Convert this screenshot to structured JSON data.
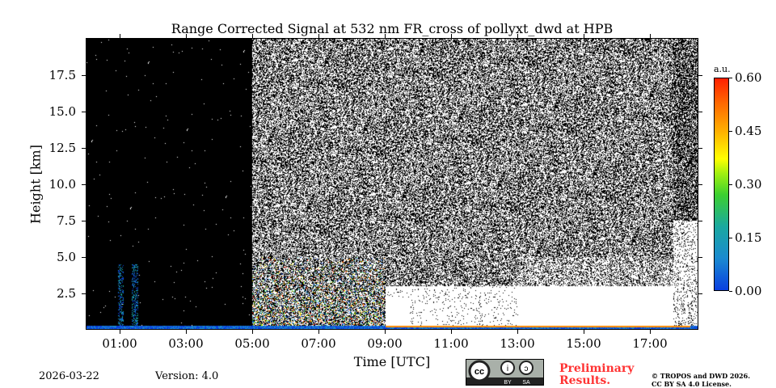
{
  "chart_data": {
    "type": "heatmap",
    "title": "Range Corrected Signal at 532 nm FR_cross of pollyxt_dwd at HPB",
    "xlabel": "Time [UTC]",
    "ylabel": "Height [km]",
    "xlim_hours": [
      0,
      18.45
    ],
    "ylim_km": [
      0,
      20
    ],
    "x_ticks": [
      {
        "v": 1,
        "label": "01:00"
      },
      {
        "v": 3,
        "label": "03:00"
      },
      {
        "v": 5,
        "label": "05:00"
      },
      {
        "v": 7,
        "label": "07:00"
      },
      {
        "v": 9,
        "label": "09:00"
      },
      {
        "v": 11,
        "label": "11:00"
      },
      {
        "v": 13,
        "label": "13:00"
      },
      {
        "v": 15,
        "label": "15:00"
      },
      {
        "v": 17,
        "label": "17:00"
      }
    ],
    "y_ticks": [
      {
        "v": 2.5,
        "label": "2.5"
      },
      {
        "v": 5,
        "label": "5.0"
      },
      {
        "v": 7.5,
        "label": "7.5"
      },
      {
        "v": 10,
        "label": "10.0"
      },
      {
        "v": 12.5,
        "label": "12.5"
      },
      {
        "v": 15,
        "label": "15.0"
      },
      {
        "v": 17.5,
        "label": "17.5"
      }
    ],
    "colorbar": {
      "unit": "a.u.",
      "range": [
        0,
        0.6
      ],
      "ticks": [
        {
          "v": 0,
          "label": "0.00"
        },
        {
          "v": 0.15,
          "label": "0.15"
        },
        {
          "v": 0.3,
          "label": "0.30"
        },
        {
          "v": 0.45,
          "label": "0.45"
        },
        {
          "v": 0.6,
          "label": "0.60"
        }
      ]
    },
    "features": {
      "daylight_noise_start_h": 5.0,
      "daylight_noise_end_h": 17.7,
      "boundary_layer_top_km": 3.0,
      "saturated_near_surface_h": [
        9.0,
        17.6
      ]
    }
  },
  "footer": {
    "date": "2026-03-22",
    "version": "Version: 4.0",
    "preliminary": [
      "Preliminary",
      "Results."
    ],
    "copyright": [
      "© TROPOS and DWD 2026.",
      "CC BY SA 4.0 License."
    ],
    "cc_badge": [
      "BY",
      "SA"
    ]
  }
}
